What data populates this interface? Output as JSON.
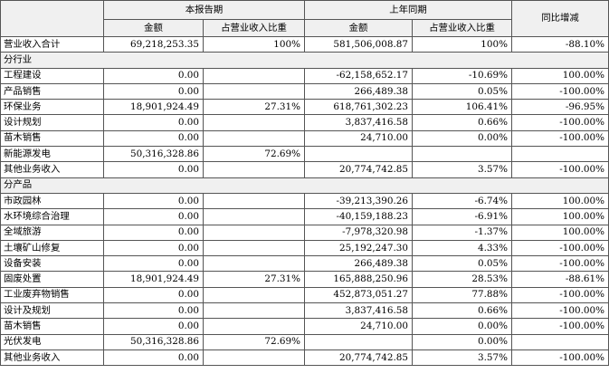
{
  "header": {
    "current_period": "本报告期",
    "prior_period": "上年同期",
    "yoy_change": "同比增减",
    "amount": "金额",
    "share_of_revenue": "占营业收入比重"
  },
  "total_row": {
    "label": "营业收入合计",
    "cur_amount": "69,218,253.35",
    "cur_pct": "100%",
    "prev_amount": "581,506,008.87",
    "prev_pct": "100%",
    "change": "-88.10%"
  },
  "by_industry": {
    "title": "分行业",
    "rows": [
      {
        "label": "工程建设",
        "cur_amount": "0.00",
        "cur_pct": "",
        "prev_amount": "-62,158,652.17",
        "prev_pct": "-10.69%",
        "change": "100.00%"
      },
      {
        "label": "产品销售",
        "cur_amount": "0.00",
        "cur_pct": "",
        "prev_amount": "266,489.38",
        "prev_pct": "0.05%",
        "change": "-100.00%"
      },
      {
        "label": "环保业务",
        "cur_amount": "18,901,924.49",
        "cur_pct": "27.31%",
        "prev_amount": "618,761,302.23",
        "prev_pct": "106.41%",
        "change": "-96.95%"
      },
      {
        "label": "设计规划",
        "cur_amount": "0.00",
        "cur_pct": "",
        "prev_amount": "3,837,416.58",
        "prev_pct": "0.66%",
        "change": "-100.00%"
      },
      {
        "label": "苗木销售",
        "cur_amount": "0.00",
        "cur_pct": "",
        "prev_amount": "24,710.00",
        "prev_pct": "0.00%",
        "change": "-100.00%"
      },
      {
        "label": "新能源发电",
        "cur_amount": "50,316,328.86",
        "cur_pct": "72.69%",
        "prev_amount": "",
        "prev_pct": "",
        "change": ""
      },
      {
        "label": "其他业务收入",
        "cur_amount": "0.00",
        "cur_pct": "",
        "prev_amount": "20,774,742.85",
        "prev_pct": "3.57%",
        "change": "-100.00%"
      }
    ]
  },
  "by_product": {
    "title": "分产品",
    "rows": [
      {
        "label": "市政园林",
        "cur_amount": "0.00",
        "cur_pct": "",
        "prev_amount": "-39,213,390.26",
        "prev_pct": "-6.74%",
        "change": "100.00%"
      },
      {
        "label": "水环境综合治理",
        "cur_amount": "0.00",
        "cur_pct": "",
        "prev_amount": "-40,159,188.23",
        "prev_pct": "-6.91%",
        "change": "100.00%"
      },
      {
        "label": "全域旅游",
        "cur_amount": "0.00",
        "cur_pct": "",
        "prev_amount": "-7,978,320.98",
        "prev_pct": "-1.37%",
        "change": "100.00%"
      },
      {
        "label": "土壤矿山修复",
        "cur_amount": "0.00",
        "cur_pct": "",
        "prev_amount": "25,192,247.30",
        "prev_pct": "4.33%",
        "change": "-100.00%"
      },
      {
        "label": "设备安装",
        "cur_amount": "0.00",
        "cur_pct": "",
        "prev_amount": "266,489.38",
        "prev_pct": "0.05%",
        "change": "-100.00%"
      },
      {
        "label": "固废处置",
        "cur_amount": "18,901,924.49",
        "cur_pct": "27.31%",
        "prev_amount": "165,888,250.96",
        "prev_pct": "28.53%",
        "change": "-88.61%"
      },
      {
        "label": "工业废弃物销售",
        "cur_amount": "0.00",
        "cur_pct": "",
        "prev_amount": "452,873,051.27",
        "prev_pct": "77.88%",
        "change": "-100.00%"
      },
      {
        "label": "设计及规划",
        "cur_amount": "0.00",
        "cur_pct": "",
        "prev_amount": "3,837,416.58",
        "prev_pct": "0.66%",
        "change": "-100.00%"
      },
      {
        "label": "苗木销售",
        "cur_amount": "0.00",
        "cur_pct": "",
        "prev_amount": "24,710.00",
        "prev_pct": "0.00%",
        "change": "-100.00%"
      },
      {
        "label": "光伏发电",
        "cur_amount": "50,316,328.86",
        "cur_pct": "72.69%",
        "prev_amount": "",
        "prev_pct": "0.00%",
        "change": ""
      },
      {
        "label": "其他业务收入",
        "cur_amount": "0.00",
        "cur_pct": "",
        "prev_amount": "20,774,742.85",
        "prev_pct": "3.57%",
        "change": "-100.00%"
      }
    ]
  }
}
